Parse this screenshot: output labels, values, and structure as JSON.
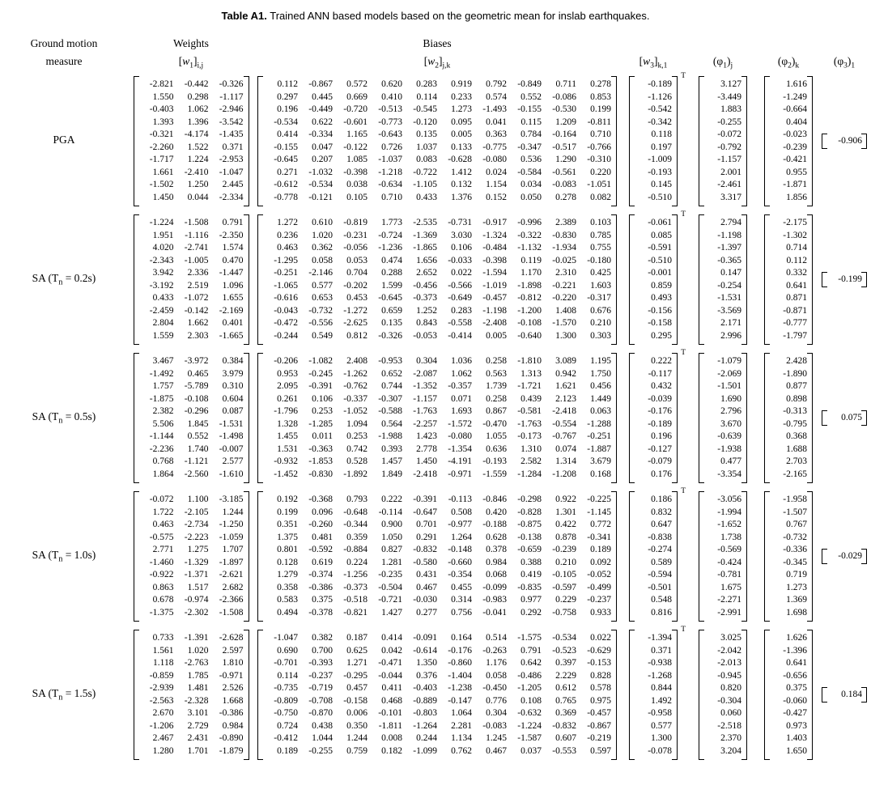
{
  "title": {
    "bold": "Table A1.",
    "rest": "Trained ANN based models based on the geometric mean for inslab earthquakes."
  },
  "headers": {
    "ground_motion": {
      "line1": "Ground motion",
      "line2": "measure"
    },
    "weights": "Weights",
    "biases": "Biases",
    "w1": {
      "open": "[",
      "sym": "w",
      "num": "1",
      "close": "]",
      "idx": "i,j"
    },
    "w2": {
      "open": "[",
      "sym": "w",
      "num": "2",
      "close": "]",
      "idx": "j,k"
    },
    "w3": {
      "open": "[",
      "sym": "w",
      "num": "3",
      "close": "]",
      "idx": "k,1"
    },
    "phi1": {
      "open": "(",
      "sym": "φ",
      "num": "1",
      "close": ")",
      "idx": "j"
    },
    "phi2": {
      "open": "(",
      "sym": "φ",
      "num": "2",
      "close": ")",
      "idx": "k"
    },
    "phi3": {
      "open": "(",
      "sym": "φ",
      "num": "3",
      "close": ")",
      "idx": "1"
    }
  },
  "notation": {
    "transpose": "T"
  },
  "rows": [
    {
      "label": {
        "pre": "PGA",
        "sub": "",
        "post": ""
      },
      "w1": [
        [
          -2.821,
          -0.442,
          -0.326
        ],
        [
          1.55,
          0.298,
          -1.117
        ],
        [
          -0.403,
          1.062,
          -2.946
        ],
        [
          1.393,
          1.396,
          -3.542
        ],
        [
          -0.321,
          -4.174,
          -1.435
        ],
        [
          -2.26,
          1.522,
          0.371
        ],
        [
          -1.717,
          1.224,
          -2.953
        ],
        [
          1.661,
          -2.41,
          -1.047
        ],
        [
          -1.502,
          1.25,
          2.445
        ],
        [
          1.45,
          0.044,
          -2.334
        ]
      ],
      "w2": [
        [
          0.112,
          -0.867,
          0.572,
          0.62,
          0.283,
          0.919,
          0.792,
          -0.849,
          0.711,
          0.278
        ],
        [
          0.297,
          0.445,
          0.669,
          0.41,
          0.114,
          0.233,
          0.574,
          0.552,
          -0.086,
          0.853
        ],
        [
          0.196,
          -0.449,
          -0.72,
          -0.513,
          -0.545,
          1.273,
          -1.493,
          -0.155,
          -0.53,
          0.199
        ],
        [
          -0.534,
          0.622,
          -0.601,
          -0.773,
          -0.12,
          0.095,
          0.041,
          0.115,
          1.209,
          -0.811
        ],
        [
          0.414,
          -0.334,
          1.165,
          -0.643,
          0.135,
          0.005,
          0.363,
          0.784,
          -0.164,
          0.71
        ],
        [
          -0.155,
          0.047,
          -0.122,
          0.726,
          1.037,
          0.133,
          -0.775,
          -0.347,
          -0.517,
          -0.766
        ],
        [
          -0.645,
          0.207,
          1.085,
          -1.037,
          0.083,
          -0.628,
          -0.08,
          0.536,
          1.29,
          -0.31
        ],
        [
          0.271,
          -1.032,
          -0.398,
          -1.218,
          -0.722,
          1.412,
          0.024,
          -0.584,
          -0.561,
          0.22
        ],
        [
          -0.612,
          -0.534,
          0.038,
          -0.634,
          -1.105,
          0.132,
          1.154,
          0.034,
          -0.083,
          -1.051
        ],
        [
          -0.778,
          -0.121,
          0.105,
          0.71,
          0.433,
          1.376,
          0.152,
          0.05,
          0.278,
          0.082
        ]
      ],
      "w3": [
        -0.189,
        -1.126,
        -0.542,
        -0.342,
        0.118,
        0.197,
        -1.009,
        -0.193,
        0.145,
        -0.51
      ],
      "phi1": [
        3.127,
        -3.449,
        1.883,
        -0.255,
        -0.072,
        -0.792,
        -1.157,
        2.001,
        -2.461,
        3.317
      ],
      "phi2": [
        1.616,
        -1.249,
        -0.664,
        0.404,
        -0.023,
        -0.239,
        -0.421,
        0.955,
        -1.871,
        1.856
      ],
      "phi3": -0.906
    },
    {
      "label": {
        "pre": "SA (T",
        "sub": "n",
        "post": " = 0.2s)"
      },
      "w1": [
        [
          -1.224,
          -1.508,
          0.791
        ],
        [
          1.951,
          -1.116,
          -2.35
        ],
        [
          4.02,
          -2.741,
          1.574
        ],
        [
          -2.343,
          -1.005,
          0.47
        ],
        [
          3.942,
          2.336,
          -1.447
        ],
        [
          -3.192,
          2.519,
          1.096
        ],
        [
          0.433,
          -1.072,
          1.655
        ],
        [
          -2.459,
          -0.142,
          -2.169
        ],
        [
          2.804,
          1.662,
          0.401
        ],
        [
          1.559,
          2.303,
          -1.665
        ]
      ],
      "w2": [
        [
          1.272,
          0.61,
          -0.819,
          1.773,
          -2.535,
          -0.731,
          -0.917,
          -0.996,
          2.389,
          0.103
        ],
        [
          0.236,
          1.02,
          -0.231,
          -0.724,
          -1.369,
          3.03,
          -1.324,
          -0.322,
          -0.83,
          0.785
        ],
        [
          0.463,
          0.362,
          -0.056,
          -1.236,
          -1.865,
          0.106,
          -0.484,
          -1.132,
          -1.934,
          0.755
        ],
        [
          -1.295,
          0.058,
          0.053,
          0.474,
          1.656,
          -0.033,
          -0.398,
          0.119,
          -0.025,
          -0.18
        ],
        [
          -0.251,
          -2.146,
          0.704,
          0.288,
          2.652,
          0.022,
          -1.594,
          1.17,
          2.31,
          0.425
        ],
        [
          -1.065,
          0.577,
          -0.202,
          1.599,
          -0.456,
          -0.566,
          -1.019,
          -1.898,
          -0.221,
          1.603
        ],
        [
          -0.616,
          0.653,
          0.453,
          -0.645,
          -0.373,
          -0.649,
          -0.457,
          -0.812,
          -0.22,
          -0.317
        ],
        [
          -0.043,
          -0.732,
          -1.272,
          0.659,
          1.252,
          0.283,
          -1.198,
          -1.2,
          1.408,
          0.676
        ],
        [
          -0.472,
          -0.556,
          -2.625,
          0.135,
          0.843,
          -0.558,
          -2.408,
          -0.108,
          -1.57,
          0.21
        ],
        [
          -0.244,
          0.549,
          0.812,
          -0.326,
          -0.053,
          -0.414,
          0.005,
          -0.64,
          1.3,
          0.303
        ]
      ],
      "w3": [
        -0.061,
        0.085,
        -0.591,
        -0.51,
        -0.001,
        0.859,
        0.493,
        -0.156,
        -0.158,
        0.295
      ],
      "phi1": [
        2.794,
        -1.198,
        -1.397,
        -0.365,
        0.147,
        -0.254,
        -1.531,
        -3.569,
        2.171,
        2.996
      ],
      "phi2": [
        -2.175,
        -1.302,
        0.714,
        0.112,
        0.332,
        0.641,
        0.871,
        -0.871,
        -0.777,
        -1.797
      ],
      "phi3": -0.199
    },
    {
      "label": {
        "pre": "SA (T",
        "sub": "n",
        "post": " = 0.5s)"
      },
      "w1": [
        [
          3.467,
          -3.972,
          0.384
        ],
        [
          -1.492,
          0.465,
          3.979
        ],
        [
          1.757,
          -5.789,
          0.31
        ],
        [
          -1.875,
          -0.108,
          0.604
        ],
        [
          2.382,
          -0.296,
          0.087
        ],
        [
          5.506,
          1.845,
          -1.531
        ],
        [
          -1.144,
          0.552,
          -1.498
        ],
        [
          -2.236,
          1.74,
          -0.007
        ],
        [
          0.768,
          -1.121,
          2.577
        ],
        [
          1.864,
          -2.56,
          -1.61
        ]
      ],
      "w2": [
        [
          -0.206,
          -1.082,
          2.408,
          -0.953,
          0.304,
          1.036,
          0.258,
          -1.81,
          3.089,
          1.195
        ],
        [
          0.953,
          -0.245,
          -1.262,
          0.652,
          -2.087,
          1.062,
          0.563,
          1.313,
          0.942,
          1.75
        ],
        [
          2.095,
          -0.391,
          -0.762,
          0.744,
          -1.352,
          -0.357,
          1.739,
          -1.721,
          1.621,
          0.456
        ],
        [
          0.261,
          0.106,
          -0.337,
          -0.307,
          -1.157,
          0.071,
          0.258,
          0.439,
          2.123,
          1.449
        ],
        [
          -1.796,
          0.253,
          -1.052,
          -0.588,
          -1.763,
          1.693,
          0.867,
          -0.581,
          -2.418,
          0.063
        ],
        [
          1.328,
          -1.285,
          1.094,
          0.564,
          -2.257,
          -1.572,
          -0.47,
          -1.763,
          -0.554,
          -1.288
        ],
        [
          1.455,
          0.011,
          0.253,
          -1.988,
          1.423,
          -0.08,
          1.055,
          -0.173,
          -0.767,
          -0.251
        ],
        [
          1.531,
          -0.363,
          0.742,
          0.393,
          2.778,
          -1.354,
          0.636,
          1.31,
          0.074,
          -1.887
        ],
        [
          -0.932,
          -1.853,
          0.528,
          1.457,
          1.45,
          -4.191,
          -0.193,
          2.582,
          1.314,
          3.679
        ],
        [
          -1.452,
          -0.83,
          -1.892,
          1.849,
          -2.418,
          -0.971,
          -1.559,
          -1.284,
          -1.208,
          0.168
        ]
      ],
      "w3": [
        0.222,
        -0.117,
        0.432,
        -0.039,
        -0.176,
        -0.189,
        0.196,
        -0.127,
        -0.079,
        0.176
      ],
      "phi1": [
        -1.079,
        -2.069,
        -1.501,
        1.69,
        2.796,
        3.67,
        -0.639,
        -1.938,
        0.477,
        -3.354
      ],
      "phi2": [
        2.428,
        -1.89,
        0.877,
        0.898,
        -0.313,
        -0.795,
        0.368,
        1.688,
        2.703,
        -2.165
      ],
      "phi3": 0.075
    },
    {
      "label": {
        "pre": "SA (T",
        "sub": "n",
        "post": " = 1.0s)"
      },
      "w1": [
        [
          -0.072,
          1.1,
          -3.185
        ],
        [
          1.722,
          -2.105,
          1.244
        ],
        [
          0.463,
          -2.734,
          -1.25
        ],
        [
          -0.575,
          -2.223,
          -1.059
        ],
        [
          2.771,
          1.275,
          1.707
        ],
        [
          -1.46,
          -1.329,
          -1.897
        ],
        [
          -0.922,
          -1.371,
          -2.621
        ],
        [
          0.863,
          1.517,
          2.682
        ],
        [
          0.678,
          -0.974,
          -2.366
        ],
        [
          -1.375,
          -2.302,
          -1.508
        ]
      ],
      "w2": [
        [
          0.192,
          -0.368,
          0.793,
          0.222,
          -0.391,
          -0.113,
          -0.846,
          -0.298,
          0.922,
          -0.225
        ],
        [
          0.199,
          0.096,
          -0.648,
          -0.114,
          -0.647,
          0.508,
          0.42,
          -0.828,
          1.301,
          -1.145
        ],
        [
          0.351,
          -0.26,
          -0.344,
          0.9,
          0.701,
          -0.977,
          -0.188,
          -0.875,
          0.422,
          0.772
        ],
        [
          1.375,
          0.481,
          0.359,
          1.05,
          0.291,
          1.264,
          0.628,
          -0.138,
          0.878,
          -0.341
        ],
        [
          0.801,
          -0.592,
          -0.884,
          0.827,
          -0.832,
          -0.148,
          0.378,
          -0.659,
          -0.239,
          0.189
        ],
        [
          0.128,
          0.619,
          0.224,
          1.281,
          -0.58,
          -0.66,
          0.984,
          0.388,
          0.21,
          0.092
        ],
        [
          1.279,
          -0.374,
          -1.256,
          -0.235,
          0.431,
          -0.354,
          0.068,
          0.419,
          -0.105,
          -0.052
        ],
        [
          0.358,
          -0.386,
          -0.373,
          -0.504,
          0.467,
          0.455,
          -0.099,
          -0.835,
          -0.597,
          -0.499
        ],
        [
          0.583,
          0.375,
          -0.518,
          -0.721,
          -0.03,
          0.314,
          -0.983,
          0.977,
          0.229,
          -0.237
        ],
        [
          0.494,
          -0.378,
          -0.821,
          1.427,
          0.277,
          0.756,
          -0.041,
          0.292,
          -0.758,
          0.933
        ]
      ],
      "w3": [
        0.186,
        0.832,
        0.647,
        -0.838,
        -0.274,
        0.589,
        -0.594,
        -0.501,
        0.548,
        0.816
      ],
      "phi1": [
        -3.056,
        -1.994,
        -1.652,
        1.738,
        -0.569,
        -0.424,
        -0.781,
        1.675,
        -2.271,
        -2.991
      ],
      "phi2": [
        -1.958,
        -1.507,
        0.767,
        -0.732,
        -0.336,
        -0.345,
        0.719,
        1.273,
        1.369,
        1.698
      ],
      "phi3": -0.029
    },
    {
      "label": {
        "pre": "SA (T",
        "sub": "n",
        "post": " = 1.5s)"
      },
      "w1": [
        [
          0.733,
          -1.391,
          -2.628
        ],
        [
          1.561,
          1.02,
          2.597
        ],
        [
          1.118,
          -2.763,
          1.81
        ],
        [
          -0.859,
          1.785,
          -0.971
        ],
        [
          -2.939,
          1.481,
          2.526
        ],
        [
          -2.563,
          -2.328,
          1.668
        ],
        [
          2.67,
          3.101,
          -0.386
        ],
        [
          -1.206,
          2.729,
          0.984
        ],
        [
          2.467,
          2.431,
          -0.89
        ],
        [
          1.28,
          1.701,
          -1.879
        ]
      ],
      "w2": [
        [
          -1.047,
          0.382,
          0.187,
          0.414,
          -0.091,
          0.164,
          0.514,
          -1.575,
          -0.534,
          0.022
        ],
        [
          0.69,
          0.7,
          0.625,
          0.042,
          -0.614,
          -0.176,
          -0.263,
          0.791,
          -0.523,
          -0.629
        ],
        [
          -0.701,
          -0.393,
          1.271,
          -0.471,
          1.35,
          -0.86,
          1.176,
          0.642,
          0.397,
          -0.153
        ],
        [
          0.114,
          -0.237,
          -0.295,
          -0.044,
          0.376,
          -1.404,
          0.058,
          -0.486,
          2.229,
          0.828
        ],
        [
          -0.735,
          -0.719,
          0.457,
          0.411,
          -0.403,
          -1.238,
          -0.45,
          -1.205,
          0.612,
          0.578
        ],
        [
          -0.809,
          -0.708,
          -0.158,
          0.468,
          -0.889,
          -0.147,
          0.776,
          0.108,
          0.765,
          0.975
        ],
        [
          -0.75,
          -0.87,
          0.006,
          -0.101,
          -0.803,
          1.064,
          0.304,
          -0.632,
          0.369,
          -0.457
        ],
        [
          0.724,
          0.438,
          0.35,
          -1.811,
          -1.264,
          2.281,
          -0.083,
          -1.224,
          -0.832,
          -0.867
        ],
        [
          -0.412,
          1.044,
          1.244,
          0.008,
          0.244,
          1.134,
          1.245,
          -1.587,
          0.607,
          -0.219
        ],
        [
          0.189,
          -0.255,
          0.759,
          0.182,
          -1.099,
          0.762,
          0.467,
          0.037,
          -0.553,
          0.597
        ]
      ],
      "w3": [
        -1.394,
        0.371,
        -0.938,
        -1.268,
        0.844,
        1.492,
        -0.958,
        0.577,
        1.3,
        -0.078
      ],
      "phi1": [
        3.025,
        -2.042,
        -2.013,
        -0.945,
        0.82,
        -0.304,
        0.06,
        -2.518,
        2.37,
        3.204
      ],
      "phi2": [
        1.626,
        -1.396,
        0.641,
        -0.656,
        0.375,
        -0.06,
        -0.427,
        0.973,
        1.403,
        1.65
      ],
      "phi3": 0.184
    }
  ]
}
